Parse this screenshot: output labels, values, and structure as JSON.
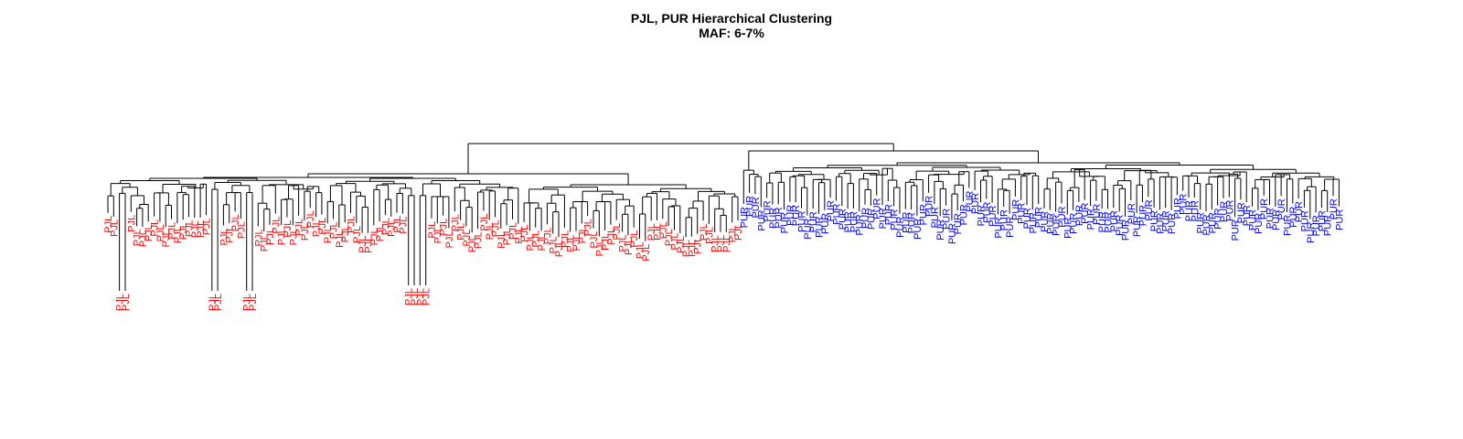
{
  "chart_data": {
    "type": "dendrogram",
    "title": "PJL, PUR Hierarchical Clustering",
    "subtitle": "MAF: 6-7%",
    "xlabel": "",
    "ylabel": "",
    "groups": [
      {
        "name": "PJL",
        "color": "#ff0000",
        "count": 110
      },
      {
        "name": "PUR",
        "color": "#0000ff",
        "count": 104
      }
    ],
    "axes_shown": false,
    "grid": false,
    "root": {
      "children": [
        {
          "group": "PJL",
          "children": [
            {
              "group": "PJL",
              "children": [
                {
                  "group": "PJL",
                  "children": [
                    {
                      "group": "PJL",
                      "leaves": 38,
                      "deep_pairs": [
                        2,
                        18,
                        24
                      ]
                    },
                    {
                      "group": "PJL",
                      "leaves": 34,
                      "deep_pairs": [
                        14,
                        16
                      ]
                    }
                  ]
                },
                {
                  "group": "PJL",
                  "leaves": 38
                }
              ]
            }
          ]
        },
        {
          "group": "PUR",
          "children": [
            {
              "group": "PUR",
              "leaves": 4
            },
            {
              "group": "PUR",
              "leaves": 100
            }
          ]
        }
      ]
    },
    "leaf_labels": [
      "PJL",
      "PJL",
      "PJL",
      "PJL",
      "PJL",
      "PJL",
      "PJL",
      "PJL",
      "PJL",
      "PJL",
      "PJL",
      "PJL",
      "PJL",
      "PJL",
      "PJL",
      "PJL",
      "PJL",
      "PJL",
      "PJL",
      "PJL",
      "PJL",
      "PJL",
      "PJL",
      "PJL",
      "PJL",
      "PJL",
      "PJL",
      "PJL",
      "PJL",
      "PJL",
      "PJL",
      "PJL",
      "PJL",
      "PJL",
      "PJL",
      "PJL",
      "PJL",
      "PJL",
      "PJL",
      "PJL",
      "PJL",
      "PJL",
      "PJL",
      "PJL",
      "PJL",
      "PJL",
      "PJL",
      "PJL",
      "PJL",
      "PJL",
      "PJL",
      "PJL",
      "PJL",
      "PJL",
      "PJL",
      "PJL",
      "PJL",
      "PJL",
      "PJL",
      "PJL",
      "PJL",
      "PJL",
      "PJL",
      "PJL",
      "PJL",
      "PJL",
      "PJL",
      "PJL",
      "PJL",
      "PJL",
      "PJL",
      "PJL",
      "PJL",
      "PJL",
      "PJL",
      "PJL",
      "PJL",
      "PJL",
      "PJL",
      "PJL",
      "PJL",
      "PJL",
      "PJL",
      "PJL",
      "PJL",
      "PJL",
      "PJL",
      "PJL",
      "PJL",
      "PJL",
      "PJL",
      "PJL",
      "PJL",
      "PJL",
      "PJL",
      "PJL",
      "PJL",
      "PJL",
      "PJL",
      "PJL",
      "PJL",
      "PJL",
      "PJL",
      "PJL",
      "PJL",
      "PJL",
      "PJL",
      "PJL",
      "PJL",
      "PJL",
      "PUR",
      "PUR",
      "PUR",
      "PUR",
      "PUR",
      "PUR",
      "PUR",
      "PUR",
      "PUR",
      "PUR",
      "PUR",
      "PUR",
      "PUR",
      "PUR",
      "PUR",
      "PUR",
      "PUR",
      "PUR",
      "PUR",
      "PUR",
      "PUR",
      "PUR",
      "PUR",
      "PUR",
      "PUR",
      "PUR",
      "PUR",
      "PUR",
      "PUR",
      "PUR",
      "PUR",
      "PUR",
      "PUR",
      "PUR",
      "PUR",
      "PUR",
      "PUR",
      "PUR",
      "PUR",
      "PUR",
      "PUR",
      "PUR",
      "PUR",
      "PUR",
      "PUR",
      "PUR",
      "PUR",
      "PUR",
      "PUR",
      "PUR",
      "PUR",
      "PUR",
      "PUR",
      "PUR",
      "PUR",
      "PUR",
      "PUR",
      "PUR",
      "PUR",
      "PUR",
      "PUR",
      "PUR",
      "PUR",
      "PUR",
      "PUR",
      "PUR",
      "PUR",
      "PUR",
      "PUR",
      "PUR",
      "PUR",
      "PUR",
      "PUR",
      "PUR",
      "PUR",
      "PUR",
      "PUR",
      "PUR",
      "PUR",
      "PUR",
      "PUR",
      "PUR",
      "PUR",
      "PUR",
      "PUR",
      "PUR",
      "PUR",
      "PUR",
      "PUR",
      "PUR",
      "PUR",
      "PUR",
      "PUR",
      "PUR",
      "PUR",
      "PUR",
      "PUR",
      "PUR",
      "PUR",
      "PUR",
      "PUR",
      "PUR",
      "PUR",
      "PUR",
      "PUR",
      "PUR"
    ]
  }
}
